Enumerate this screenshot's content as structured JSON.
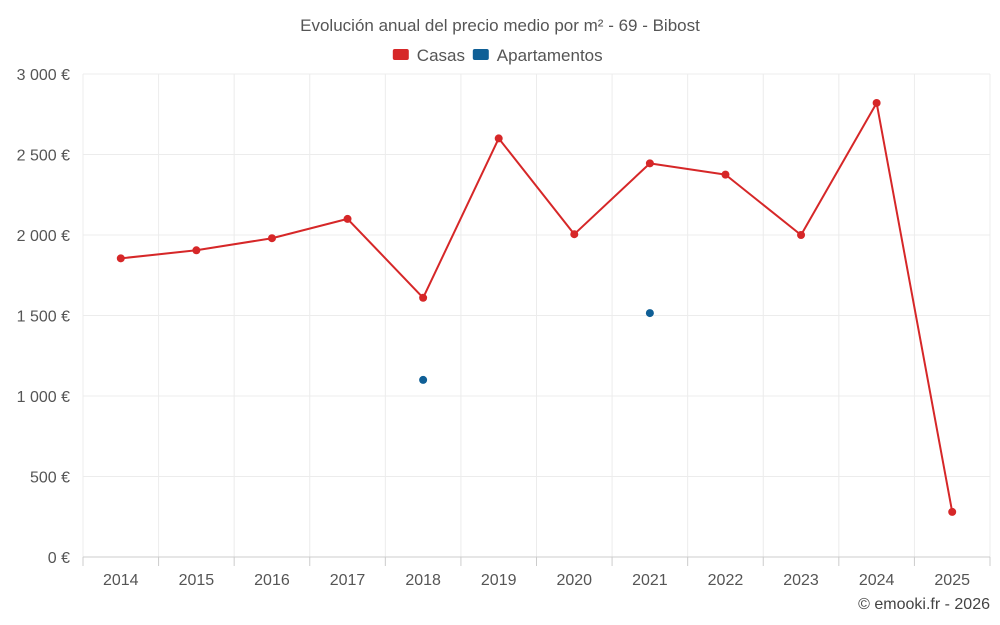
{
  "chart_data": {
    "type": "line",
    "title": "Evolución anual del precio medio por m² - 69 - Bibost",
    "categories": [
      "2014",
      "2015",
      "2016",
      "2017",
      "2018",
      "2019",
      "2020",
      "2021",
      "2022",
      "2023",
      "2024",
      "2025"
    ],
    "y_ticks": [
      0,
      500,
      1000,
      1500,
      2000,
      2500,
      3000
    ],
    "y_tick_labels": [
      "0 €",
      "500 €",
      "1 000 €",
      "1 500 €",
      "2 000 €",
      "2 500 €",
      "3 000 €"
    ],
    "ylim": [
      0,
      3000
    ],
    "xlabel": "",
    "ylabel": "",
    "grid": true,
    "legend_position": "top-center",
    "series": [
      {
        "name": "Casas",
        "color": "#d62728",
        "values": [
          1855,
          1905,
          1980,
          2100,
          1610,
          2600,
          2005,
          2445,
          2375,
          2000,
          2820,
          280
        ]
      },
      {
        "name": "Apartamentos",
        "color": "#0f5f96",
        "values": [
          null,
          null,
          null,
          null,
          1100,
          null,
          null,
          1515,
          null,
          null,
          null,
          null
        ]
      }
    ],
    "credit": "© emooki.fr - 2026"
  }
}
